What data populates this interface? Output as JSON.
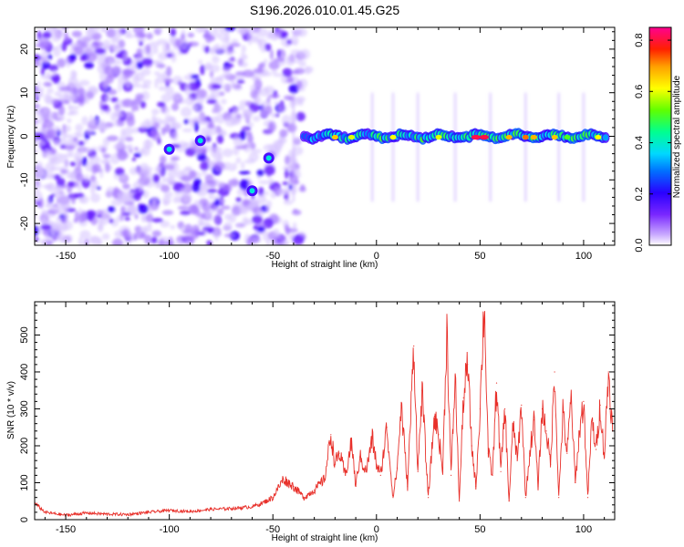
{
  "chart_data": [
    {
      "type": "heatmap",
      "title": "S196.2026.010.01.45.G25",
      "xlabel": "Height of straight line (km)",
      "ylabel": "Frequency (Hz)",
      "xlim": [
        -165,
        115
      ],
      "ylim": [
        -25,
        25
      ],
      "xticks": [
        -150,
        -100,
        -50,
        0,
        50,
        100
      ],
      "yticks": [
        -20,
        -10,
        0,
        10,
        20
      ],
      "xtick_labels": [
        "-150",
        "-100",
        "-50",
        "0",
        "50",
        "100"
      ],
      "ytick_labels": [
        "-20",
        "-10",
        "0",
        "10",
        "20"
      ],
      "colorbar": {
        "label": "Normalized spectral amplitude",
        "range": [
          0.0,
          0.85
        ],
        "ticks": [
          0.0,
          0.2,
          0.4,
          0.6,
          0.8
        ],
        "tick_labels": [
          "0.0",
          "0.2",
          "0.4",
          "0.6",
          "0.8"
        ],
        "colors": [
          "#ffffff",
          "#9b59ff",
          "#3000ff",
          "#0050ff",
          "#00c8ff",
          "#00ff90",
          "#60ff00",
          "#ffff00",
          "#ffa000",
          "#ff2000",
          "#ff00a0"
        ]
      },
      "features": {
        "noise_region_x": [
          -165,
          -35
        ],
        "signal_ridge": {
          "x_range": [
            -35,
            112
          ],
          "frequency_hz": 0,
          "peak_amplitude": 0.85
        },
        "isolated_peaks": [
          {
            "x": -60,
            "frequency_hz": -12.5
          },
          {
            "x": -52,
            "frequency_hz": -5
          },
          {
            "x": -100,
            "frequency_hz": -3
          },
          {
            "x": -85,
            "frequency_hz": -1
          }
        ]
      }
    },
    {
      "type": "line",
      "xlabel": "Height of straight line (km)",
      "ylabel": "SNR (10 * v/v)",
      "xlim": [
        -165,
        115
      ],
      "ylim": [
        0,
        590
      ],
      "xticks": [
        -150,
        -100,
        -50,
        0,
        50,
        100
      ],
      "yticks": [
        0,
        100,
        200,
        300,
        400,
        500
      ],
      "xtick_labels": [
        "-150",
        "-100",
        "-50",
        "0",
        "50",
        "100"
      ],
      "ytick_labels": [
        "0",
        "100",
        "200",
        "300",
        "400",
        "500"
      ],
      "series": [
        {
          "name": "SNR",
          "color": "#e8302a",
          "x": [
            -165,
            -160,
            -150,
            -140,
            -130,
            -120,
            -110,
            -100,
            -90,
            -80,
            -70,
            -60,
            -55,
            -50,
            -45,
            -40,
            -35,
            -30,
            -25,
            -22,
            -20,
            -18,
            -15,
            -12,
            -10,
            -8,
            -5,
            -2,
            0,
            2,
            5,
            8,
            10,
            12,
            15,
            18,
            20,
            22,
            25,
            28,
            30,
            32,
            34,
            36,
            38,
            40,
            42,
            44,
            46,
            48,
            50,
            52,
            54,
            56,
            58,
            60,
            62,
            64,
            66,
            68,
            70,
            72,
            74,
            76,
            78,
            80,
            82,
            84,
            86,
            88,
            90,
            92,
            94,
            96,
            98,
            100,
            102,
            104,
            106,
            108,
            110,
            112,
            114
          ],
          "values": [
            45,
            20,
            12,
            18,
            15,
            14,
            20,
            25,
            22,
            28,
            30,
            35,
            45,
            60,
            110,
            90,
            60,
            80,
            110,
            230,
            150,
            180,
            120,
            210,
            90,
            170,
            130,
            220,
            150,
            120,
            250,
            60,
            140,
            310,
            90,
            470,
            130,
            350,
            60,
            280,
            230,
            130,
            520,
            120,
            390,
            50,
            330,
            420,
            200,
            90,
            300,
            590,
            180,
            120,
            370,
            130,
            300,
            50,
            260,
            160,
            310,
            60,
            180,
            270,
            90,
            300,
            240,
            150,
            400,
            60,
            290,
            180,
            330,
            100,
            240,
            320,
            60,
            270,
            190,
            310,
            170,
            400,
            240
          ]
        }
      ]
    }
  ]
}
